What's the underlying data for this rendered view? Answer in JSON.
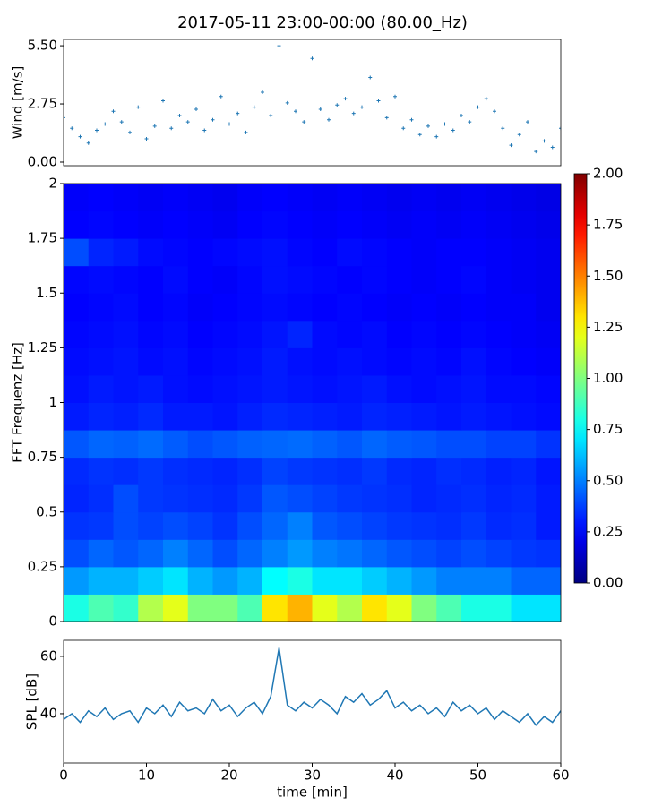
{
  "title": "2017-05-11 23:00-00:00 (80.00_Hz)",
  "chart_data": [
    {
      "type": "scatter",
      "ylabel": "Wind [m/s]",
      "color": "#1f77b4",
      "xlim": [
        0,
        60
      ],
      "ylim": [
        -0.17,
        5.8
      ],
      "yticks": [
        {
          "value": 0,
          "label": "0.00"
        },
        {
          "value": 2.75,
          "label": "2.75"
        },
        {
          "value": 5.5,
          "label": "5.50"
        }
      ],
      "x": [
        0,
        1,
        2,
        3,
        4,
        5,
        6,
        7,
        8,
        9,
        10,
        11,
        12,
        13,
        14,
        15,
        16,
        17,
        18,
        19,
        20,
        21,
        22,
        23,
        24,
        25,
        26,
        27,
        28,
        29,
        30,
        31,
        32,
        33,
        34,
        35,
        36,
        37,
        38,
        39,
        40,
        41,
        42,
        43,
        44,
        45,
        46,
        47,
        48,
        49,
        50,
        51,
        52,
        53,
        54,
        55,
        56,
        57,
        58,
        59,
        60
      ],
      "values": [
        2.1,
        1.6,
        1.2,
        0.9,
        1.5,
        1.8,
        2.4,
        1.9,
        1.4,
        2.6,
        1.1,
        1.7,
        2.9,
        1.6,
        2.2,
        1.9,
        2.5,
        1.5,
        2.0,
        3.1,
        1.8,
        2.3,
        1.4,
        2.6,
        3.3,
        2.2,
        5.5,
        2.8,
        2.4,
        1.9,
        4.9,
        2.5,
        2.0,
        2.7,
        3.0,
        2.3,
        2.6,
        4.0,
        2.9,
        2.1,
        3.1,
        1.6,
        2.0,
        1.3,
        1.7,
        1.2,
        1.8,
        1.5,
        2.2,
        1.9,
        2.6,
        3.0,
        2.4,
        1.6,
        0.8,
        1.3,
        1.9,
        0.5,
        1.0,
        0.7,
        1.6
      ]
    },
    {
      "type": "heatmap",
      "ylabel": "FFT Frequenz [Hz]",
      "colormap": "jet",
      "xlim": [
        0,
        60
      ],
      "ylim": [
        0,
        2
      ],
      "yticks": [
        0,
        0.25,
        0.5,
        0.75,
        1,
        1.25,
        1.5,
        1.75,
        2
      ],
      "clim": [
        0,
        2
      ],
      "cticks": [
        {
          "value": 0,
          "label": "0.00"
        },
        {
          "value": 0.25,
          "label": "0.25"
        },
        {
          "value": 0.5,
          "label": "0.50"
        },
        {
          "value": 0.75,
          "label": "0.75"
        },
        {
          "value": 1,
          "label": "1.00"
        },
        {
          "value": 1.25,
          "label": "1.25"
        },
        {
          "value": 1.5,
          "label": "1.50"
        },
        {
          "value": 1.75,
          "label": "1.75"
        },
        {
          "value": 2,
          "label": "2.00"
        }
      ],
      "values": [
        [
          0.8,
          0.9,
          0.85,
          1.1,
          1.2,
          1.0,
          1.0,
          0.9,
          1.3,
          1.4,
          1.2,
          1.1,
          1.3,
          1.2,
          1.0,
          0.9,
          0.8,
          0.8,
          0.7,
          0.7
        ],
        [
          0.55,
          0.6,
          0.6,
          0.65,
          0.7,
          0.6,
          0.55,
          0.6,
          0.75,
          0.8,
          0.7,
          0.7,
          0.65,
          0.6,
          0.55,
          0.5,
          0.5,
          0.5,
          0.45,
          0.45
        ],
        [
          0.4,
          0.45,
          0.42,
          0.45,
          0.5,
          0.45,
          0.4,
          0.45,
          0.5,
          0.55,
          0.5,
          0.48,
          0.45,
          0.42,
          0.4,
          0.38,
          0.4,
          0.38,
          0.36,
          0.35
        ],
        [
          0.35,
          0.36,
          0.4,
          0.38,
          0.4,
          0.38,
          0.35,
          0.4,
          0.45,
          0.5,
          0.42,
          0.4,
          0.38,
          0.36,
          0.35,
          0.34,
          0.36,
          0.33,
          0.34,
          0.3
        ],
        [
          0.32,
          0.34,
          0.4,
          0.36,
          0.35,
          0.34,
          0.33,
          0.36,
          0.42,
          0.4,
          0.38,
          0.36,
          0.35,
          0.34,
          0.32,
          0.33,
          0.34,
          0.32,
          0.33,
          0.3
        ],
        [
          0.33,
          0.35,
          0.34,
          0.36,
          0.34,
          0.33,
          0.32,
          0.34,
          0.38,
          0.36,
          0.35,
          0.34,
          0.36,
          0.33,
          0.32,
          0.34,
          0.33,
          0.31,
          0.32,
          0.29
        ],
        [
          0.42,
          0.45,
          0.44,
          0.46,
          0.43,
          0.4,
          0.42,
          0.44,
          0.45,
          0.46,
          0.44,
          0.42,
          0.45,
          0.43,
          0.42,
          0.4,
          0.4,
          0.38,
          0.38,
          0.35
        ],
        [
          0.3,
          0.32,
          0.31,
          0.33,
          0.3,
          0.3,
          0.29,
          0.31,
          0.33,
          0.32,
          0.31,
          0.3,
          0.32,
          0.31,
          0.3,
          0.29,
          0.3,
          0.29,
          0.28,
          0.27
        ],
        [
          0.28,
          0.3,
          0.29,
          0.3,
          0.28,
          0.27,
          0.28,
          0.29,
          0.3,
          0.29,
          0.28,
          0.29,
          0.3,
          0.28,
          0.27,
          0.28,
          0.29,
          0.27,
          0.27,
          0.26
        ],
        [
          0.27,
          0.28,
          0.29,
          0.27,
          0.28,
          0.26,
          0.27,
          0.28,
          0.3,
          0.28,
          0.27,
          0.28,
          0.27,
          0.26,
          0.27,
          0.26,
          0.28,
          0.26,
          0.25,
          0.24
        ],
        [
          0.26,
          0.27,
          0.28,
          0.26,
          0.27,
          0.25,
          0.26,
          0.27,
          0.29,
          0.32,
          0.27,
          0.26,
          0.27,
          0.25,
          0.26,
          0.25,
          0.26,
          0.25,
          0.24,
          0.23
        ],
        [
          0.25,
          0.26,
          0.27,
          0.25,
          0.26,
          0.24,
          0.25,
          0.26,
          0.27,
          0.26,
          0.25,
          0.26,
          0.25,
          0.24,
          0.25,
          0.24,
          0.25,
          0.24,
          0.24,
          0.22
        ],
        [
          0.26,
          0.27,
          0.26,
          0.25,
          0.27,
          0.25,
          0.24,
          0.26,
          0.28,
          0.27,
          0.26,
          0.25,
          0.26,
          0.25,
          0.24,
          0.25,
          0.26,
          0.24,
          0.23,
          0.22
        ],
        [
          0.4,
          0.32,
          0.3,
          0.27,
          0.26,
          0.25,
          0.26,
          0.27,
          0.28,
          0.26,
          0.25,
          0.27,
          0.26,
          0.25,
          0.24,
          0.25,
          0.25,
          0.24,
          0.23,
          0.22
        ],
        [
          0.25,
          0.26,
          0.25,
          0.24,
          0.25,
          0.24,
          0.23,
          0.25,
          0.26,
          0.25,
          0.24,
          0.25,
          0.24,
          0.23,
          0.24,
          0.23,
          0.24,
          0.23,
          0.22,
          0.21
        ],
        [
          0.24,
          0.25,
          0.24,
          0.23,
          0.24,
          0.23,
          0.22,
          0.24,
          0.25,
          0.24,
          0.23,
          0.24,
          0.23,
          0.22,
          0.23,
          0.22,
          0.23,
          0.22,
          0.21,
          0.2
        ]
      ]
    },
    {
      "type": "line",
      "ylabel": "SPL [dB]",
      "xlabel": "time [min]",
      "color": "#1f77b4",
      "xlim": [
        0,
        60
      ],
      "ylim": [
        22.8,
        65.6
      ],
      "xticks": [
        0,
        10,
        20,
        30,
        40,
        50,
        60
      ],
      "yticks": [
        40,
        60
      ],
      "x": [
        0,
        1,
        2,
        3,
        4,
        5,
        6,
        7,
        8,
        9,
        10,
        11,
        12,
        13,
        14,
        15,
        16,
        17,
        18,
        19,
        20,
        21,
        22,
        23,
        24,
        25,
        26,
        27,
        28,
        29,
        30,
        31,
        32,
        33,
        34,
        35,
        36,
        37,
        38,
        39,
        40,
        41,
        42,
        43,
        44,
        45,
        46,
        47,
        48,
        49,
        50,
        51,
        52,
        53,
        54,
        55,
        56,
        57,
        58,
        59,
        60
      ],
      "values": [
        38,
        40,
        37,
        41,
        39,
        42,
        38,
        40,
        41,
        37,
        42,
        40,
        43,
        39,
        44,
        41,
        42,
        40,
        45,
        41,
        43,
        39,
        42,
        44,
        40,
        46,
        63,
        43,
        41,
        44,
        42,
        45,
        43,
        40,
        46,
        44,
        47,
        43,
        45,
        48,
        42,
        44,
        41,
        43,
        40,
        42,
        39,
        44,
        41,
        43,
        40,
        42,
        38,
        41,
        39,
        37,
        40,
        36,
        39,
        37,
        41
      ]
    }
  ]
}
